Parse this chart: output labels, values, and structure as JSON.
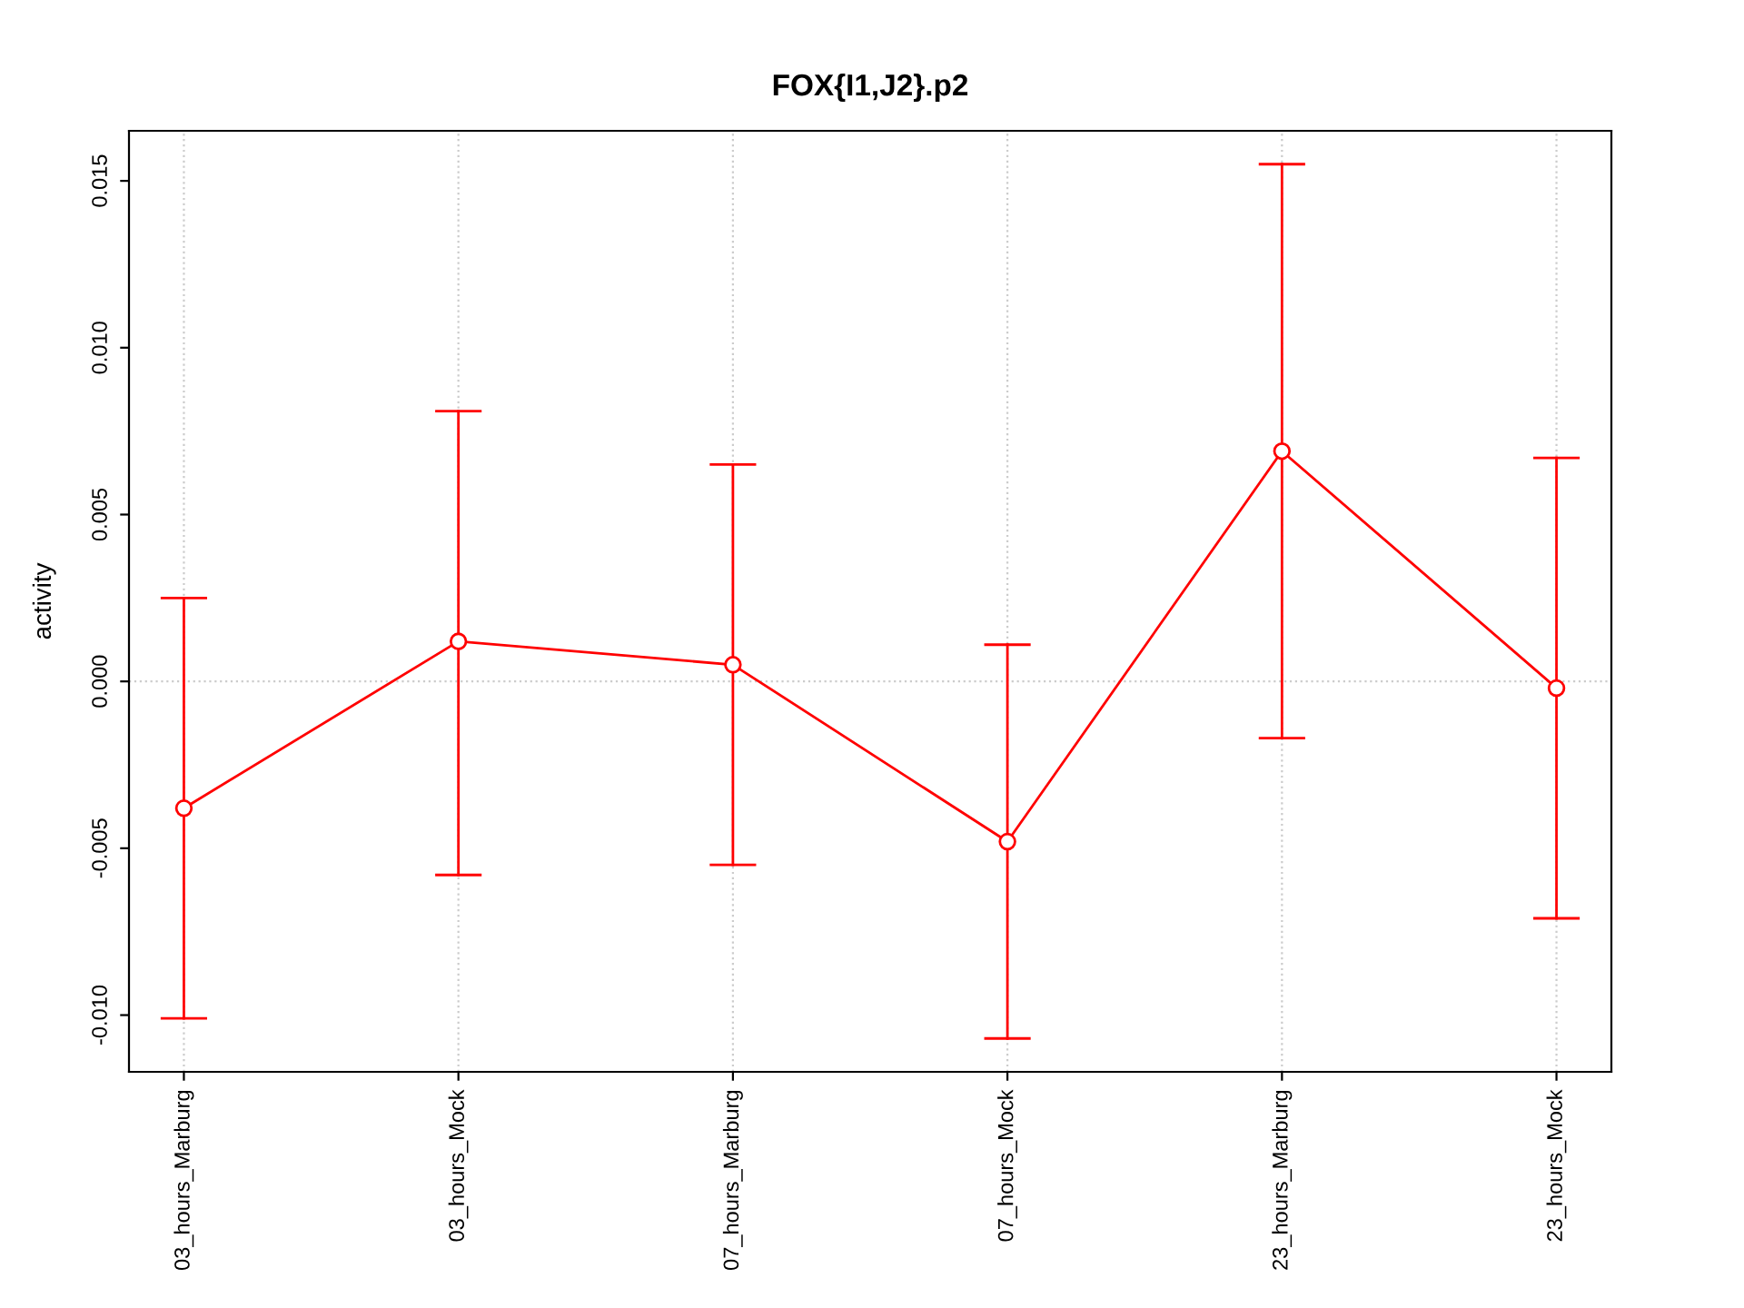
{
  "chart_data": {
    "type": "line",
    "title": "FOX{I1,J2}.p2",
    "ylabel": "activity",
    "categories": [
      "03_hours_Marburg",
      "03_hours_Mock",
      "07_hours_Marburg",
      "07_hours_Mock",
      "23_hours_Marburg",
      "23_hours_Mock"
    ],
    "series": [
      {
        "color": "#ff0000",
        "values": [
          -0.0038,
          0.0012,
          0.0005,
          -0.0048,
          0.0069,
          -0.0002
        ],
        "errors": [
          [
            -0.0101,
            0.0025
          ],
          [
            -0.0058,
            0.0081
          ],
          [
            -0.0055,
            0.0065
          ],
          [
            -0.0107,
            0.0011
          ],
          [
            -0.0017,
            0.0155
          ],
          [
            -0.0071,
            0.0067
          ]
        ]
      }
    ],
    "ylim": [
      -0.0117,
      0.0165
    ],
    "yticks": [
      {
        "value": -0.01,
        "label": "-0.010"
      },
      {
        "value": -0.005,
        "label": "-0.005"
      },
      {
        "value": 0,
        "label": "0.000"
      },
      {
        "value": 0.005,
        "label": "0.005"
      },
      {
        "value": 0.01,
        "label": "0.010"
      },
      {
        "value": 0.015,
        "label": "0.015"
      }
    ],
    "grid": "x",
    "marker": "circle",
    "line_style": "solid",
    "ref_lines": [
      {
        "axis": "y",
        "value": 0,
        "color": "#cccccc",
        "line_style": "dotted"
      }
    ]
  }
}
